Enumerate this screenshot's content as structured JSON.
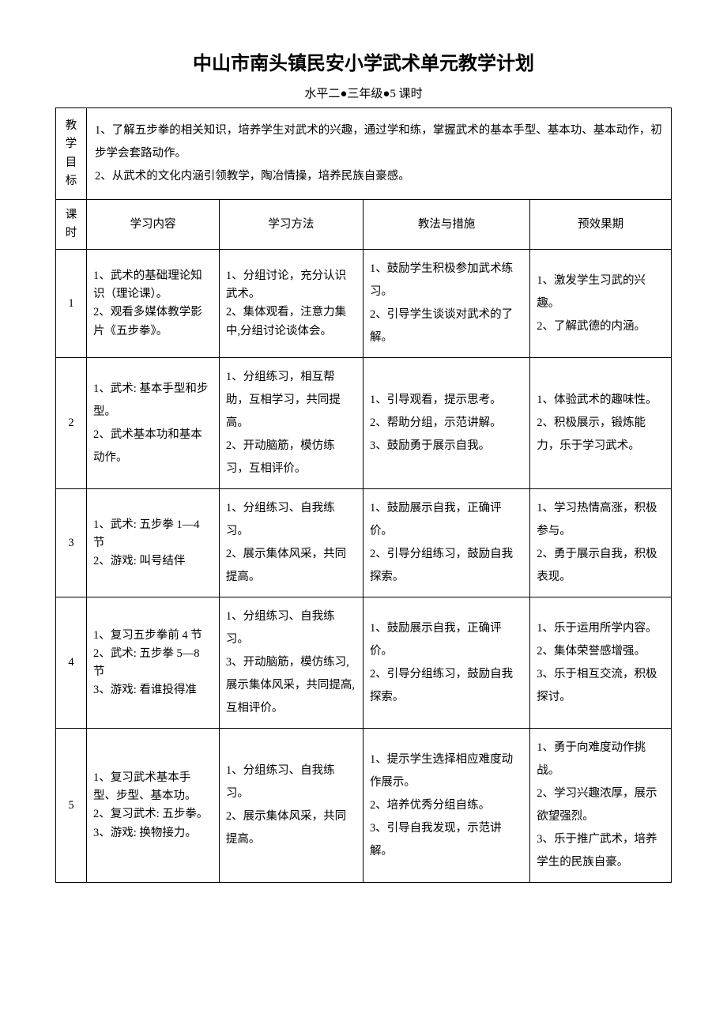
{
  "title": "中山市南头镇民安小学武术单元教学计划",
  "subtitle": "水平二●三年级●5 课时",
  "goals_label": "教\n学\n目\n标",
  "goals": "1、了解五步拳的相关知识，培养学生对武术的兴趣，通过学和练，掌握武术的基本手型、基本功、基本动作，初步学会套路动作。\n2、从武术的文化内涵引领教学，陶冶情操，培养民族自豪感。",
  "headers": {
    "h1": "课\n时",
    "h2": "学习内容",
    "h3": "学习方法",
    "h4": "教法与措施",
    "h5": "预效果期"
  },
  "rows": [
    {
      "num": "1",
      "c2": "1、武术的基础理论知识（理论课）。\n2、观看多媒体教学影片《五步拳》。",
      "c3": "1、分组讨论，充分认识武术。\n2、集体观看，注意力集中,分组讨论谈体会。",
      "c4": "1、鼓励学生积极参加武术练习。\n2、引导学生谈谈对武术的了解。",
      "c5": "1、激发学生习武的兴趣。\n2、了解武德的内涵。"
    },
    {
      "num": "2",
      "c2": "1、武术: 基本手型和步型。\n2、武术基本功和基本动作。",
      "c3": "1、分组练习，相互帮助，互相学习，共同提高。\n2、开动脑筋，模仿练习，互相评价。",
      "c4": "1、引导观看，提示思考。\n2、帮助分组，示范讲解。\n3、鼓励勇于展示自我。",
      "c5": "1、体验武术的趣味性。\n2、积极展示，锻炼能力，乐于学习武术。"
    },
    {
      "num": "3",
      "c2": "1、武术: 五步拳 1—4 节\n2、游戏: 叫号结伴",
      "c3": "1、分组练习、自我练习。\n2、展示集体风采，共同提高。",
      "c4": "1、鼓励展示自我，正确评价。\n2、引导分组练习，鼓励自我探索。",
      "c5": "1、学习热情高涨，积极参与。\n2、勇于展示自我，积极表现。"
    },
    {
      "num": "4",
      "c2": "1、复习五步拳前 4 节\n2、武术: 五步拳 5—8 节\n3、游戏: 看谁投得准",
      "c3": "1、分组练习、自我练习。\n3、开动脑筋，模仿练习,展示集体风采，共同提高,互相评价。",
      "c4": "1、鼓励展示自我，正确评价。\n2、引导分组练习，鼓励自我探索。",
      "c5": "1、乐于运用所学内容。\n2、集体荣誉感增强。\n3、乐于相互交流，积极探讨。"
    },
    {
      "num": "5",
      "c2": "1、复习武术基本手型、步型、基本功。\n2、复习武术: 五步拳。\n3、游戏: 换物接力。",
      "c3": "1、分组练习、自我练习。\n2、展示集体风采，共同提高。",
      "c4": "1、提示学生选择相应难度动作展示。\n2、培养优秀分组自练。\n3、引导自我发现，示范讲解。",
      "c5": "1、勇于向难度动作挑战。\n2、学习兴趣浓厚，展示欲望强烈。\n3、乐于推广武术，培养学生的民族自豪。"
    }
  ]
}
